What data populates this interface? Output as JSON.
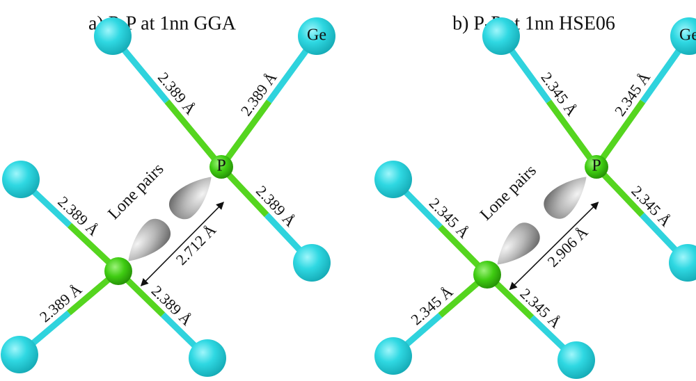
{
  "panels": [
    {
      "title": "a) P-P at 1nn GGA",
      "bond_labels": [
        "2.389 Å",
        "2.389 Å",
        "2.389 Å",
        "2.389 Å",
        "2.389 Å",
        "2.389 Å"
      ],
      "pp_distance": "2.712 Å",
      "lone_pairs_label": "Lone pairs",
      "p_label": "P",
      "ge_label": "Ge"
    },
    {
      "title": "b) P-P at 1nn HSE06",
      "bond_labels": [
        "2.345 Å",
        "2.345 Å",
        "2.345 Å",
        "2.345 Å",
        "2.345 Å",
        "2.345 Å"
      ],
      "pp_distance": "2.906 Å",
      "lone_pairs_label": "Lone pairs",
      "p_label": "P",
      "ge_label": "Ge"
    }
  ]
}
